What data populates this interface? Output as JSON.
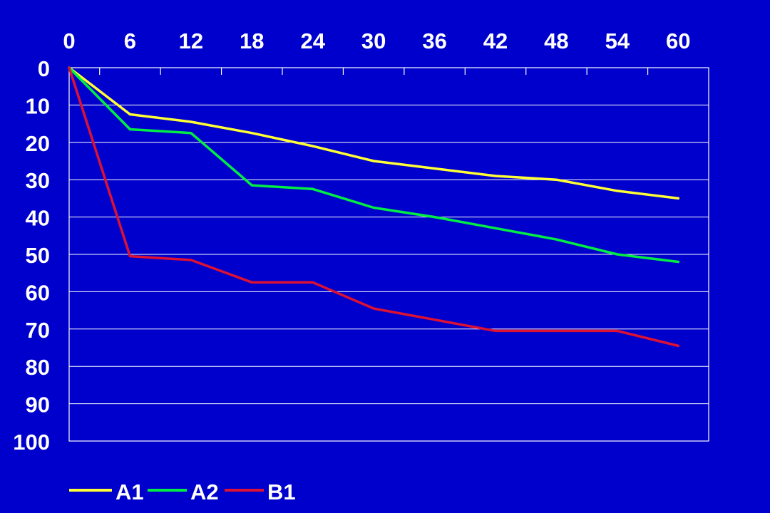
{
  "chart_data": {
    "type": "line",
    "x": [
      0,
      6,
      12,
      18,
      24,
      30,
      36,
      42,
      48,
      54,
      60
    ],
    "x_ticks": [
      "0",
      "6",
      "12",
      "18",
      "24",
      "30",
      "36",
      "42",
      "48",
      "54",
      "60"
    ],
    "y_ticks": [
      "0",
      "10",
      "20",
      "30",
      "40",
      "50",
      "60",
      "70",
      "80",
      "90",
      "100"
    ],
    "xlim": [
      0,
      63
    ],
    "ylim": [
      0,
      100
    ],
    "y_inverted": true,
    "x_axis_position": "top",
    "grid": "horizontal",
    "legend_position": "bottom-left",
    "background_color": "#0000cc",
    "series": [
      {
        "name": "A1",
        "color": "#ffff33",
        "values": [
          0,
          12.5,
          14.5,
          17.5,
          21,
          25,
          27,
          29,
          30,
          33,
          35
        ]
      },
      {
        "name": "A2",
        "color": "#00ee44",
        "values": [
          0,
          16.5,
          17.5,
          31.5,
          32.5,
          37.5,
          40,
          43,
          46,
          50,
          52
        ]
      },
      {
        "name": "B1",
        "color": "#dd1133",
        "values": [
          0,
          50.5,
          51.5,
          57.5,
          57.5,
          64.5,
          67.5,
          70.5,
          70.5,
          70.5,
          74.5
        ]
      }
    ]
  }
}
